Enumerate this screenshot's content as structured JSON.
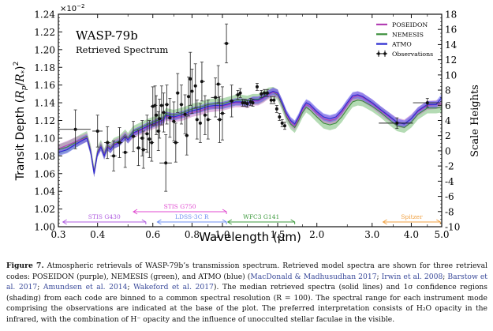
{
  "chart_data": {
    "type": "line",
    "title": "WASP-79b",
    "subtitle": "Retrieved Spectrum",
    "xlabel": "Wavelength (µm)",
    "ylabel": "Transit Depth (Rp/R*)^2",
    "ylabel_right": "Scale Heights",
    "y_multiplier": "×10^-2",
    "xscale": "log",
    "xlim": [
      0.3,
      5.0
    ],
    "ylim": [
      1.0,
      1.24
    ],
    "ylim_right": [
      -10,
      18
    ],
    "x_ticks": [
      "0.3",
      "0.4",
      "0.6",
      "0.8",
      "1.0",
      "1.5",
      "2.0",
      "3.0",
      "4.0",
      "5.0"
    ],
    "x_tick_values": [
      0.3,
      0.4,
      0.6,
      0.8,
      1.0,
      1.5,
      2.0,
      3.0,
      4.0,
      5.0
    ],
    "y_ticks": [
      "1.00",
      "1.02",
      "1.04",
      "1.06",
      "1.08",
      "1.10",
      "1.12",
      "1.14",
      "1.16",
      "1.18",
      "1.20",
      "1.22",
      "1.24"
    ],
    "y_right_ticks": [
      "-10",
      "-8",
      "-6",
      "-4",
      "-2",
      "0",
      "2",
      "4",
      "6",
      "8",
      "10",
      "12",
      "14",
      "16",
      "18"
    ],
    "legend": {
      "position": "top-right",
      "entries": [
        {
          "label": "POSEIDON",
          "color": "#b23fb3"
        },
        {
          "label": "NEMESIS",
          "color": "#3c8f3c"
        },
        {
          "label": "ATMO",
          "color": "#2a2ad0"
        },
        {
          "label": "Observations",
          "color": "#111111"
        }
      ]
    },
    "model_x": [
      0.3,
      0.32,
      0.34,
      0.36,
      0.37,
      0.38,
      0.39,
      0.4,
      0.41,
      0.42,
      0.43,
      0.44,
      0.45,
      0.47,
      0.49,
      0.5,
      0.52,
      0.55,
      0.58,
      0.62,
      0.65,
      0.66,
      0.7,
      0.75,
      0.8,
      0.85,
      0.9,
      0.95,
      1.0,
      1.05,
      1.1,
      1.15,
      1.2,
      1.25,
      1.3,
      1.35,
      1.4,
      1.45,
      1.5,
      1.55,
      1.6,
      1.65,
      1.7,
      1.75,
      1.8,
      1.85,
      1.9,
      2.0,
      2.1,
      2.2,
      2.3,
      2.4,
      2.5,
      2.6,
      2.7,
      2.8,
      3.0,
      3.2,
      3.4,
      3.6,
      3.8,
      4.0,
      4.2,
      4.5,
      4.8,
      5.0
    ],
    "series": [
      {
        "name": "ATMO",
        "color": "#2a2ad0",
        "values": [
          1.084,
          1.087,
          1.093,
          1.098,
          1.1,
          1.085,
          1.06,
          1.083,
          1.09,
          1.08,
          1.09,
          1.087,
          1.092,
          1.095,
          1.102,
          1.098,
          1.106,
          1.11,
          1.114,
          1.118,
          1.121,
          1.126,
          1.124,
          1.127,
          1.131,
          1.133,
          1.136,
          1.137,
          1.137,
          1.139,
          1.141,
          1.141,
          1.14,
          1.143,
          1.143,
          1.146,
          1.15,
          1.153,
          1.151,
          1.14,
          1.128,
          1.12,
          1.116,
          1.124,
          1.134,
          1.14,
          1.138,
          1.13,
          1.124,
          1.122,
          1.124,
          1.131,
          1.14,
          1.148,
          1.149,
          1.147,
          1.14,
          1.132,
          1.125,
          1.118,
          1.116,
          1.122,
          1.131,
          1.138,
          1.138,
          1.146
        ],
        "band": 0.004
      },
      {
        "name": "NEMESIS",
        "color": "#3c8f3c",
        "values": [
          1.087,
          1.09,
          1.095,
          1.1,
          1.102,
          1.087,
          1.062,
          1.085,
          1.092,
          1.082,
          1.092,
          1.089,
          1.094,
          1.097,
          1.104,
          1.1,
          1.108,
          1.112,
          1.116,
          1.12,
          1.123,
          1.128,
          1.126,
          1.129,
          1.133,
          1.135,
          1.138,
          1.139,
          1.139,
          1.141,
          1.143,
          1.143,
          1.142,
          1.144,
          1.144,
          1.147,
          1.151,
          1.152,
          1.149,
          1.137,
          1.124,
          1.116,
          1.112,
          1.12,
          1.129,
          1.135,
          1.132,
          1.124,
          1.117,
          1.115,
          1.117,
          1.124,
          1.133,
          1.141,
          1.143,
          1.142,
          1.136,
          1.129,
          1.121,
          1.114,
          1.112,
          1.118,
          1.127,
          1.134,
          1.134,
          1.135
        ],
        "band": 0.006
      },
      {
        "name": "POSEIDON",
        "color": "#b23fb3",
        "values": [
          1.088,
          1.092,
          1.096,
          1.099,
          1.101,
          1.086,
          1.061,
          1.084,
          1.091,
          1.081,
          1.091,
          1.088,
          1.093,
          1.096,
          1.103,
          1.099,
          1.105,
          1.109,
          1.113,
          1.117,
          1.12,
          1.125,
          1.123,
          1.125,
          1.129,
          1.131,
          1.134,
          1.135,
          1.136,
          1.138,
          1.14,
          1.14,
          1.139,
          1.142,
          1.142,
          1.145,
          1.149,
          1.152,
          1.15,
          1.139,
          1.126,
          1.118,
          1.114,
          1.122,
          1.132,
          1.138,
          1.136,
          1.128,
          1.122,
          1.12,
          1.122,
          1.129,
          1.138,
          1.146,
          1.148,
          1.146,
          1.139,
          1.131,
          1.124,
          1.118,
          1.116,
          1.122,
          1.13,
          1.137,
          1.138,
          1.139
        ],
        "band": 0.005
      }
    ],
    "observations": [
      {
        "x": 0.34,
        "xerr": [
          0.3,
          0.38
        ],
        "y": 1.11,
        "yerr": 0.022
      },
      {
        "x": 0.4,
        "xerr": [
          0.385,
          0.415
        ],
        "y": 1.108,
        "yerr": 0.018
      },
      {
        "x": 0.43,
        "xerr": [
          0.42,
          0.44
        ],
        "y": 1.095,
        "yerr": 0.018
      },
      {
        "x": 0.45,
        "xerr": [
          0.44,
          0.46
        ],
        "y": 1.08,
        "yerr": 0.017
      },
      {
        "x": 0.47,
        "xerr": [
          0.46,
          0.48
        ],
        "y": 1.095,
        "yerr": 0.017
      },
      {
        "x": 0.49,
        "xerr": [
          0.48,
          0.5
        ],
        "y": 1.084,
        "yerr": 0.017
      },
      {
        "x": 0.52,
        "xerr": [
          0.51,
          0.53
        ],
        "y": 1.102,
        "yerr": 0.017
      },
      {
        "x": 0.54,
        "xerr": [
          0.53,
          0.55
        ],
        "y": 1.089,
        "yerr": 0.02
      },
      {
        "x": 0.555,
        "xerr": [
          0.545,
          0.565
        ],
        "y": 1.1,
        "yerr": 0.02
      },
      {
        "x": 0.56,
        "xerr": [
          0.55,
          0.575
        ],
        "y": 1.087,
        "yerr": 0.021
      },
      {
        "x": 0.575,
        "xerr": [
          0.565,
          0.585
        ],
        "y": 1.105,
        "yerr": 0.021
      },
      {
        "x": 0.585,
        "xerr": [
          0.575,
          0.595
        ],
        "y": 1.099,
        "yerr": 0.021
      },
      {
        "x": 0.595,
        "xerr": [
          0.585,
          0.605
        ],
        "y": 1.095,
        "yerr": 0.021
      },
      {
        "x": 0.6,
        "xerr": [
          0.59,
          0.61
        ],
        "y": 1.136,
        "yerr": 0.022
      },
      {
        "x": 0.61,
        "xerr": [
          0.6,
          0.62
        ],
        "y": 1.137,
        "yerr": 0.022
      },
      {
        "x": 0.615,
        "xerr": [
          0.605,
          0.625
        ],
        "y": 1.126,
        "yerr": 0.022
      },
      {
        "x": 0.625,
        "xerr": [
          0.615,
          0.635
        ],
        "y": 1.108,
        "yerr": 0.022
      },
      {
        "x": 0.63,
        "xerr": [
          0.62,
          0.64
        ],
        "y": 1.122,
        "yerr": 0.022
      },
      {
        "x": 0.64,
        "xerr": [
          0.63,
          0.65
        ],
        "y": 1.137,
        "yerr": 0.022
      },
      {
        "x": 0.65,
        "xerr": [
          0.64,
          0.66
        ],
        "y": 1.129,
        "yerr": 0.022
      },
      {
        "x": 0.66,
        "xerr": [
          0.63,
          0.69
        ],
        "y": 1.072,
        "yerr": 0.032
      },
      {
        "x": 0.665,
        "xerr": [
          0.655,
          0.675
        ],
        "y": 1.138,
        "yerr": 0.022
      },
      {
        "x": 0.68,
        "xerr": [
          0.67,
          0.69
        ],
        "y": 1.123,
        "yerr": 0.022
      },
      {
        "x": 0.7,
        "xerr": [
          0.69,
          0.71
        ],
        "y": 1.119,
        "yerr": 0.022
      },
      {
        "x": 0.71,
        "xerr": [
          0.695,
          0.725
        ],
        "y": 1.095,
        "yerr": 0.022
      },
      {
        "x": 0.72,
        "xerr": [
          0.71,
          0.73
        ],
        "y": 1.151,
        "yerr": 0.022
      },
      {
        "x": 0.74,
        "xerr": [
          0.73,
          0.75
        ],
        "y": 1.138,
        "yerr": 0.022
      },
      {
        "x": 0.76,
        "xerr": [
          0.745,
          0.775
        ],
        "y": 1.127,
        "yerr": 0.022
      },
      {
        "x": 0.77,
        "xerr": [
          0.76,
          0.78
        ],
        "y": 1.103,
        "yerr": 0.022
      },
      {
        "x": 0.78,
        "xerr": [
          0.77,
          0.79
        ],
        "y": 1.147,
        "yerr": 0.022
      },
      {
        "x": 0.79,
        "xerr": [
          0.78,
          0.8
        ],
        "y": 1.167,
        "yerr": 0.03
      },
      {
        "x": 0.8,
        "xerr": [
          0.79,
          0.81
        ],
        "y": 1.153,
        "yerr": 0.025
      },
      {
        "x": 0.82,
        "xerr": [
          0.81,
          0.83
        ],
        "y": 1.159,
        "yerr": 0.025
      },
      {
        "x": 0.83,
        "xerr": [
          0.82,
          0.84
        ],
        "y": 1.121,
        "yerr": 0.022
      },
      {
        "x": 0.85,
        "xerr": [
          0.84,
          0.86
        ],
        "y": 1.117,
        "yerr": 0.022
      },
      {
        "x": 0.86,
        "xerr": [
          0.85,
          0.88
        ],
        "y": 1.164,
        "yerr": 0.022
      },
      {
        "x": 0.88,
        "xerr": [
          0.87,
          0.9
        ],
        "y": 1.126,
        "yerr": 0.022
      },
      {
        "x": 0.9,
        "xerr": [
          0.89,
          0.92
        ],
        "y": 1.121,
        "yerr": 0.022
      },
      {
        "x": 0.95,
        "xerr": [
          0.92,
          0.98
        ],
        "y": 1.146,
        "yerr": 0.022
      },
      {
        "x": 0.97,
        "xerr": [
          0.95,
          0.99
        ],
        "y": 1.161,
        "yerr": 0.021
      },
      {
        "x": 0.98,
        "xerr": [
          0.96,
          1.0
        ],
        "y": 1.121,
        "yerr": 0.026
      },
      {
        "x": 1.0,
        "xerr": [
          0.98,
          1.02
        ],
        "y": 1.128,
        "yerr": 0.03
      },
      {
        "x": 1.03,
        "xerr": [
          1.01,
          1.05
        ],
        "y": 1.207,
        "yerr": 0.022
      },
      {
        "x": 1.07,
        "xerr": [
          1.05,
          1.09
        ],
        "y": 1.142,
        "yerr": 0.018
      },
      {
        "x": 1.12,
        "xerr": [
          1.1,
          1.14
        ],
        "y": 1.149,
        "yerr": 0.005
      },
      {
        "x": 1.14,
        "xerr": [
          1.13,
          1.15
        ],
        "y": 1.151,
        "yerr": 0.005
      },
      {
        "x": 1.16,
        "xerr": [
          1.15,
          1.17
        ],
        "y": 1.14,
        "yerr": 0.004
      },
      {
        "x": 1.18,
        "xerr": [
          1.17,
          1.19
        ],
        "y": 1.14,
        "yerr": 0.004
      },
      {
        "x": 1.2,
        "xerr": [
          1.19,
          1.21
        ],
        "y": 1.139,
        "yerr": 0.004
      },
      {
        "x": 1.23,
        "xerr": [
          1.22,
          1.24
        ],
        "y": 1.141,
        "yerr": 0.004
      },
      {
        "x": 1.25,
        "xerr": [
          1.24,
          1.26
        ],
        "y": 1.14,
        "yerr": 0.004
      },
      {
        "x": 1.29,
        "xerr": [
          1.28,
          1.3
        ],
        "y": 1.158,
        "yerr": 0.004
      },
      {
        "x": 1.33,
        "xerr": [
          1.32,
          1.34
        ],
        "y": 1.15,
        "yerr": 0.004
      },
      {
        "x": 1.36,
        "xerr": [
          1.35,
          1.37
        ],
        "y": 1.151,
        "yerr": 0.004
      },
      {
        "x": 1.39,
        "xerr": [
          1.38,
          1.4
        ],
        "y": 1.151,
        "yerr": 0.004
      },
      {
        "x": 1.43,
        "xerr": [
          1.42,
          1.44
        ],
        "y": 1.143,
        "yerr": 0.004
      },
      {
        "x": 1.46,
        "xerr": [
          1.45,
          1.47
        ],
        "y": 1.143,
        "yerr": 0.004
      },
      {
        "x": 1.49,
        "xerr": [
          1.48,
          1.5
        ],
        "y": 1.133,
        "yerr": 0.004
      },
      {
        "x": 1.52,
        "xerr": [
          1.51,
          1.53
        ],
        "y": 1.124,
        "yerr": 0.004
      },
      {
        "x": 1.55,
        "xerr": [
          1.54,
          1.56
        ],
        "y": 1.117,
        "yerr": 0.004
      },
      {
        "x": 1.58,
        "xerr": [
          1.57,
          1.59
        ],
        "y": 1.114,
        "yerr": 0.004
      },
      {
        "x": 3.6,
        "xerr": [
          3.15,
          4.05
        ],
        "y": 1.117,
        "yerr": 0.006
      },
      {
        "x": 4.5,
        "xerr": [
          4.05,
          4.95
        ],
        "y": 1.14,
        "yerr": 0.005
      }
    ],
    "instrument_ranges": [
      {
        "label": "STIS G430",
        "range": [
          0.31,
          0.57
        ],
        "color": "#b05de0",
        "row": 1
      },
      {
        "label": "STIS G750",
        "range": [
          0.52,
          1.03
        ],
        "color": "#e04ad0",
        "row": 2
      },
      {
        "label": "LDSS-3C R",
        "range": [
          0.62,
          1.03
        ],
        "color": "#6f8ff0",
        "row": 1
      },
      {
        "label": "WFC3 G141",
        "range": [
          1.04,
          1.7
        ],
        "color": "#3c9a3c",
        "row": 1
      },
      {
        "label": "Spitzer",
        "range": [
          3.25,
          4.95
        ],
        "color": "#f0a040",
        "row": 1
      }
    ]
  },
  "caption": {
    "figure_label": "Figure 7.",
    "text_1": " Atmospheric retrievals of WASP-79b’s transmission spectrum. Retrieved model spectra are shown for three retrieval codes: POSEIDON (purple), NEMESIS (green), and ATMO (blue) (",
    "refs": [
      "MacDonald & Madhusudhan 2017",
      "Irwin et al. 2008",
      "Barstow et al. 2017",
      "Amundsen et al. 2014",
      "Wakeford et al. 2017"
    ],
    "text_2": "). The median retrieved spectra (solid lines) and 1σ confidence regions (shading) from each code are binned to a common spectral resolution (R = 100). The spectral range for each instrument mode comprising the observations are indicated at the base of the plot. The preferred interpretation consists of H₂O opacity in the infrared, with the combination of H⁻ opacity and the influence of unocculted stellar faculae in the visible."
  }
}
